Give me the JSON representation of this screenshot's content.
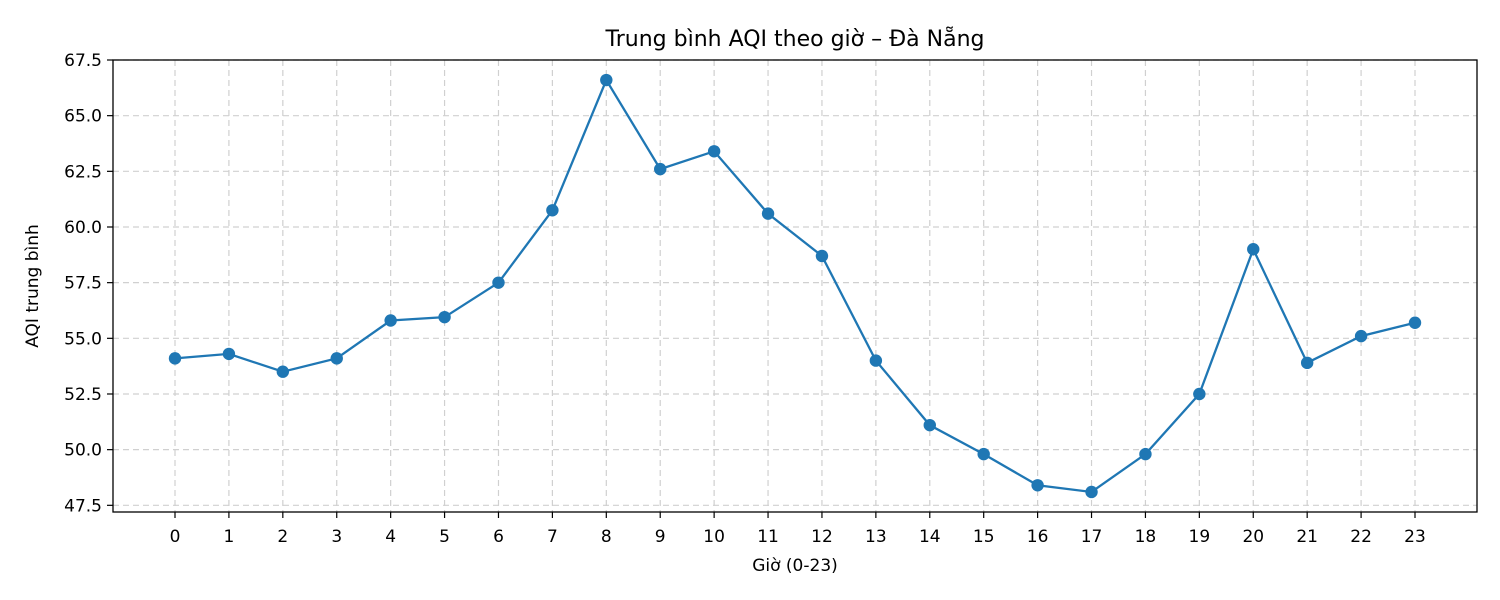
{
  "chart_data": {
    "type": "line",
    "title": "Trung bình AQI theo giờ – Đà Nẵng",
    "xlabel": "Giờ (0-23)",
    "ylabel": "AQI trung bình",
    "x": [
      0,
      1,
      2,
      3,
      4,
      5,
      6,
      7,
      8,
      9,
      10,
      11,
      12,
      13,
      14,
      15,
      16,
      17,
      18,
      19,
      20,
      21,
      22,
      23
    ],
    "x_tick_labels": [
      "0",
      "1",
      "2",
      "3",
      "4",
      "5",
      "6",
      "7",
      "8",
      "9",
      "10",
      "11",
      "12",
      "13",
      "14",
      "15",
      "16",
      "17",
      "18",
      "19",
      "20",
      "21",
      "22",
      "23"
    ],
    "y_ticks": [
      47.5,
      50.0,
      52.5,
      55.0,
      57.5,
      60.0,
      62.5,
      65.0,
      67.5
    ],
    "y_tick_labels": [
      "47.5",
      "50.0",
      "52.5",
      "55.0",
      "57.5",
      "60.0",
      "62.5",
      "65.0",
      "67.5"
    ],
    "xlim": [
      -1.15,
      24.15
    ],
    "ylim": [
      47.2,
      67.5
    ],
    "grid": true,
    "series": [
      {
        "color": "#1f77b4",
        "marker": "circle",
        "values": [
          54.1,
          54.3,
          53.5,
          54.1,
          55.8,
          55.95,
          57.5,
          60.75,
          66.6,
          62.6,
          63.4,
          60.6,
          58.7,
          54.0,
          51.1,
          49.8,
          48.4,
          48.1,
          49.8,
          52.5,
          59.0,
          53.9,
          55.1,
          55.7
        ]
      }
    ]
  }
}
